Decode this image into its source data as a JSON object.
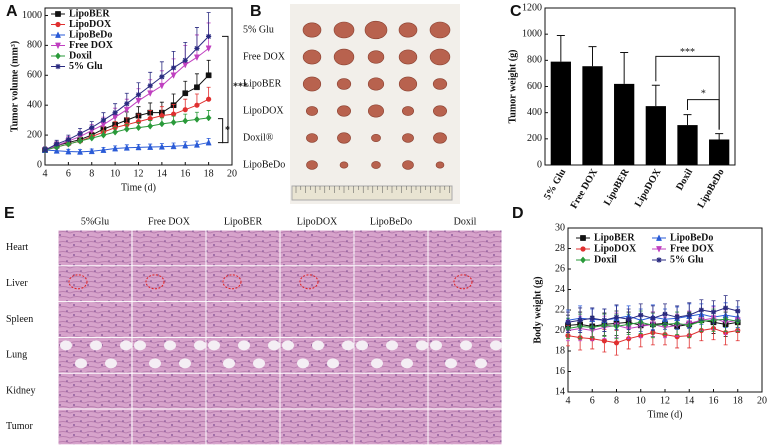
{
  "chart_data": [
    {
      "type": "line",
      "label": "A",
      "xlabel": "Time (d)",
      "ylabel": "Tumor volume (mm³)",
      "x": [
        4,
        5,
        6,
        7,
        8,
        9,
        10,
        11,
        12,
        13,
        14,
        15,
        16,
        17,
        18
      ],
      "xlim": [
        4,
        20
      ],
      "xticks": [
        4,
        6,
        8,
        10,
        12,
        14,
        16,
        18,
        20
      ],
      "ylim": [
        0,
        1050
      ],
      "yticks": [
        0,
        200,
        400,
        600,
        800,
        1000
      ],
      "error_bars": "upper",
      "legend": "upper left",
      "annotations": [
        "***",
        "*"
      ],
      "series": [
        {
          "name": "LipoBER",
          "color": "#111111",
          "marker": "square",
          "values": [
            100,
            130,
            150,
            170,
            200,
            240,
            270,
            300,
            330,
            350,
            350,
            400,
            480,
            520,
            600
          ],
          "errors": [
            20,
            25,
            30,
            35,
            40,
            45,
            50,
            55,
            60,
            65,
            70,
            75,
            80,
            90,
            100
          ]
        },
        {
          "name": "LipoDOX",
          "color": "#e03030",
          "marker": "circle",
          "values": [
            100,
            120,
            140,
            160,
            190,
            220,
            250,
            270,
            290,
            310,
            330,
            340,
            370,
            400,
            440
          ],
          "errors": [
            20,
            22,
            25,
            28,
            30,
            35,
            40,
            45,
            50,
            55,
            60,
            65,
            70,
            75,
            80
          ]
        },
        {
          "name": "LipoBeDo",
          "color": "#2a5bd7",
          "marker": "triangle",
          "values": [
            100,
            95,
            90,
            88,
            92,
            100,
            110,
            115,
            118,
            120,
            122,
            125,
            130,
            135,
            150
          ],
          "errors": [
            15,
            15,
            15,
            15,
            15,
            18,
            18,
            20,
            20,
            20,
            22,
            22,
            25,
            25,
            28
          ]
        },
        {
          "name": "Free DOX",
          "color": "#c040c0",
          "marker": "down-triangle",
          "values": [
            100,
            130,
            160,
            190,
            230,
            270,
            320,
            370,
            430,
            480,
            530,
            600,
            670,
            720,
            780
          ],
          "errors": [
            20,
            25,
            30,
            35,
            40,
            50,
            60,
            70,
            80,
            90,
            100,
            110,
            130,
            150,
            170
          ]
        },
        {
          "name": "Doxil",
          "color": "#2a9a3a",
          "marker": "diamond",
          "values": [
            100,
            120,
            140,
            160,
            180,
            200,
            220,
            240,
            250,
            260,
            275,
            285,
            295,
            305,
            315
          ],
          "errors": [
            15,
            18,
            20,
            22,
            25,
            28,
            30,
            32,
            35,
            38,
            40,
            42,
            45,
            48,
            50
          ]
        },
        {
          "name": "5% Glu",
          "color": "#2a2a80",
          "marker": "star",
          "values": [
            100,
            140,
            170,
            210,
            250,
            300,
            350,
            410,
            470,
            530,
            590,
            650,
            700,
            780,
            860
          ],
          "errors": [
            20,
            25,
            30,
            35,
            40,
            50,
            60,
            70,
            80,
            90,
            100,
            110,
            120,
            140,
            160
          ]
        }
      ]
    },
    {
      "type": "bar",
      "label": "C",
      "ylabel": "Tumor weight (g)",
      "color": "#000000",
      "error_bars": "upper",
      "categories": [
        "5% Glu",
        "Free DOX",
        "LipoBER",
        "LipoDOX",
        "Doxil",
        "LipoBeDo"
      ],
      "values": [
        790,
        755,
        620,
        450,
        305,
        195
      ],
      "errors": [
        200,
        150,
        240,
        160,
        80,
        45
      ],
      "ylim": [
        0,
        1200
      ],
      "yticks": [
        0,
        200,
        400,
        600,
        800,
        1000,
        1200
      ],
      "annotations": [
        "***",
        "*"
      ]
    },
    {
      "type": "line",
      "label": "D",
      "xlabel": "Time (d)",
      "ylabel": "Body weight (g)",
      "x": [
        4,
        5,
        6,
        7,
        8,
        9,
        10,
        11,
        12,
        13,
        14,
        15,
        16,
        17,
        18
      ],
      "xlim": [
        4,
        20
      ],
      "xticks": [
        4,
        6,
        8,
        10,
        12,
        14,
        16,
        18,
        20
      ],
      "ylim": [
        14,
        30
      ],
      "yticks": [
        14,
        16,
        18,
        20,
        22,
        24,
        26,
        28,
        30
      ],
      "error_bars": "both",
      "legend": "top",
      "series": [
        {
          "name": "LipoBER",
          "color": "#111111",
          "marker": "square",
          "values": [
            20.5,
            20.6,
            20.4,
            20.6,
            20.7,
            20.8,
            20.5,
            20.6,
            20.7,
            20.4,
            20.6,
            21,
            20.8,
            20.6,
            20.8
          ],
          "errors": [
            1,
            1.2,
            1,
            1.1,
            1.2,
            1,
            1.1,
            1.2,
            1,
            1.1,
            1.2,
            1,
            1.1,
            1.2,
            1
          ]
        },
        {
          "name": "LipoBeDo",
          "color": "#2a5bd7",
          "marker": "triangle",
          "values": [
            21,
            21.2,
            21.1,
            21,
            21.2,
            21.4,
            21,
            21.3,
            21.1,
            21.2,
            21.4,
            21.6,
            21.3,
            21.5,
            21.3
          ],
          "errors": [
            1,
            1.2,
            1,
            1.1,
            1.2,
            1,
            1.1,
            1.2,
            1,
            1.1,
            1.2,
            1,
            1.1,
            1.2,
            1
          ]
        },
        {
          "name": "LipoDOX",
          "color": "#e03030",
          "marker": "circle",
          "values": [
            19.5,
            19.3,
            19.2,
            19,
            18.8,
            19.2,
            19.5,
            19.8,
            19.6,
            19.4,
            19.5,
            20,
            20.2,
            19.8,
            20
          ],
          "errors": [
            1,
            1.2,
            1,
            1.1,
            1.2,
            1,
            1.1,
            1.2,
            1,
            1.1,
            1.2,
            1,
            1.1,
            1.2,
            1
          ]
        },
        {
          "name": "Free DOX",
          "color": "#c040c0",
          "marker": "down-triangle",
          "values": [
            20,
            20.2,
            20,
            20.3,
            20.5,
            20.2,
            20.4,
            20.6,
            20.3,
            20.5,
            20.7,
            21,
            21.2,
            20.8,
            21
          ],
          "errors": [
            1,
            1.2,
            1,
            1.1,
            1.2,
            1,
            1.1,
            1.2,
            1,
            1.1,
            1.2,
            1,
            1.1,
            1.2,
            1
          ]
        },
        {
          "name": "Doxil",
          "color": "#2a9a3a",
          "marker": "diamond",
          "values": [
            20.2,
            20.4,
            20.3,
            20.5,
            20.4,
            20.6,
            20.8,
            20.5,
            20.6,
            20.7,
            20.5,
            20.9,
            21,
            21.1,
            20.9
          ],
          "errors": [
            1,
            1.2,
            1,
            1.1,
            1.2,
            1,
            1.1,
            1.2,
            1,
            1.1,
            1.2,
            1,
            1.1,
            1.2,
            1
          ]
        },
        {
          "name": "5% Glu",
          "color": "#2a2a80",
          "marker": "star",
          "values": [
            20.8,
            21,
            21.2,
            21,
            21.3,
            21.1,
            21.5,
            21.2,
            21.6,
            21.3,
            21.5,
            22,
            21.8,
            22.2,
            21.9
          ],
          "errors": [
            1,
            1.2,
            1,
            1.1,
            1.2,
            1,
            1.1,
            1.2,
            1,
            1.1,
            1.2,
            1,
            1.1,
            1.2,
            1
          ]
        }
      ]
    }
  ],
  "photo": {
    "label": "B",
    "rows": [
      "5% Glu",
      "Free DOX",
      "LipoBER",
      "LipoDOX",
      "Doxil®",
      "LipoBeDo"
    ]
  },
  "histology": {
    "label": "E",
    "columns": [
      "5%Glu",
      "Free DOX",
      "LipoBER",
      "LipoDOX",
      "LipoBeDo",
      "Doxil"
    ],
    "rows": [
      "Heart",
      "Liver",
      "Spleen",
      "Lung",
      "Kidney",
      "Tumor"
    ]
  }
}
